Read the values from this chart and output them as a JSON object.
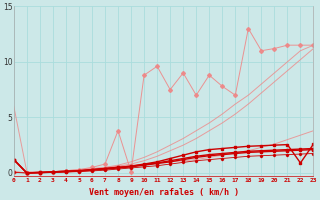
{
  "xlabel": "Vent moyen/en rafales ( km/h )",
  "bg_color": "#cce8e8",
  "grid_color": "#aadddd",
  "xlim": [
    0,
    23
  ],
  "ylim": [
    -0.3,
    15
  ],
  "yticks": [
    0,
    5,
    10,
    15
  ],
  "xticks": [
    0,
    1,
    2,
    3,
    4,
    5,
    6,
    7,
    8,
    9,
    10,
    11,
    12,
    13,
    14,
    15,
    16,
    17,
    18,
    19,
    20,
    21,
    22,
    23
  ],
  "x": [
    0,
    1,
    2,
    3,
    4,
    5,
    6,
    7,
    8,
    9,
    10,
    11,
    12,
    13,
    14,
    15,
    16,
    17,
    18,
    19,
    20,
    21,
    22,
    23
  ],
  "pink_line1_y": [
    6.0,
    0.1,
    0.1,
    0.1,
    0.2,
    0.3,
    0.4,
    0.5,
    0.6,
    0.7,
    0.8,
    0.9,
    1.0,
    1.1,
    1.2,
    1.4,
    1.6,
    1.8,
    2.0,
    2.3,
    2.6,
    3.0,
    3.4,
    3.8
  ],
  "pink_line2_y": [
    0.1,
    0.0,
    0.0,
    0.1,
    0.15,
    0.2,
    0.3,
    0.5,
    0.7,
    1.0,
    1.4,
    1.9,
    2.5,
    3.1,
    3.8,
    4.5,
    5.3,
    6.2,
    7.0,
    8.0,
    9.0,
    10.0,
    11.0,
    11.5
  ],
  "pink_line3_y": [
    0.1,
    0.0,
    0.0,
    0.1,
    0.2,
    0.3,
    0.5,
    0.8,
    3.8,
    0.1,
    8.8,
    9.6,
    7.5,
    9.0,
    7.0,
    8.8,
    7.8,
    7.0,
    13.0,
    11.0,
    11.2,
    11.5,
    11.5,
    11.5
  ],
  "pink_line4_y": [
    0.1,
    0.0,
    0.0,
    0.05,
    0.1,
    0.15,
    0.25,
    0.4,
    0.6,
    0.8,
    1.1,
    1.5,
    2.0,
    2.5,
    3.1,
    3.8,
    4.5,
    5.3,
    6.2,
    7.2,
    8.2,
    9.2,
    10.2,
    11.2
  ],
  "pink_color": "#ee8888",
  "red_line1_y": [
    1.2,
    0.0,
    0.05,
    0.1,
    0.15,
    0.2,
    0.3,
    0.4,
    0.5,
    0.6,
    0.8,
    1.0,
    1.3,
    1.6,
    1.9,
    2.1,
    2.2,
    2.3,
    2.4,
    2.45,
    2.5,
    2.55,
    0.9,
    2.6
  ],
  "red_line2_y": [
    1.2,
    0.0,
    0.05,
    0.1,
    0.15,
    0.2,
    0.3,
    0.4,
    0.5,
    0.6,
    0.75,
    0.9,
    1.1,
    1.3,
    1.5,
    1.65,
    1.75,
    1.85,
    1.95,
    2.0,
    2.05,
    2.1,
    2.15,
    2.2
  ],
  "red_line3_y": [
    1.2,
    0.0,
    0.02,
    0.07,
    0.12,
    0.18,
    0.25,
    0.35,
    0.45,
    0.55,
    0.7,
    0.85,
    1.0,
    1.2,
    1.4,
    1.55,
    1.65,
    1.75,
    1.85,
    1.9,
    1.95,
    2.0,
    2.05,
    2.1
  ],
  "red_line4_y": [
    0.05,
    0.0,
    0.02,
    0.05,
    0.08,
    0.12,
    0.18,
    0.25,
    0.35,
    0.45,
    0.55,
    0.65,
    0.8,
    0.95,
    1.1,
    1.2,
    1.3,
    1.4,
    1.5,
    1.55,
    1.6,
    1.65,
    1.7,
    1.75
  ],
  "red_color": "#cc0000"
}
